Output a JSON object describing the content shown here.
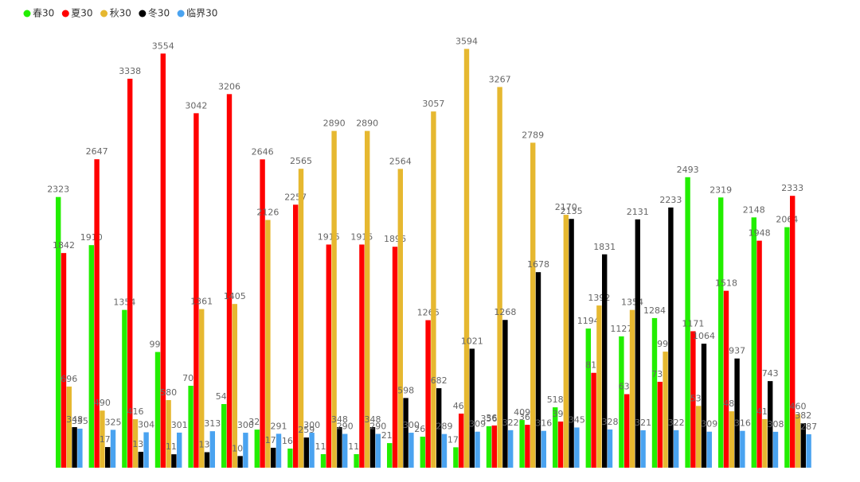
{
  "chart_data": {
    "type": "bar",
    "categories": [
      null,
      null,
      null,
      null,
      null,
      null,
      null,
      null,
      null,
      null,
      null,
      null,
      null,
      null,
      null,
      null,
      null,
      null,
      null,
      null,
      null,
      null,
      null
    ],
    "series": [
      {
        "name": "春30",
        "color": "#22ee00",
        "values": [
          2323,
          1910,
          1354,
          993,
          703,
          546,
          327,
          164,
          116,
          116,
          211,
          266,
          175,
          356,
          409,
          518,
          1194,
          1127,
          1284,
          2493,
          2319,
          2148,
          2064
        ]
      },
      {
        "name": "夏30",
        "color": "#ff0000",
        "values": [
          1842,
          2647,
          3338,
          3554,
          3042,
          3206,
          2646,
          2257,
          1915,
          1915,
          1896,
          1266,
          464,
          362,
          368,
          396,
          814,
          631,
          737,
          1171,
          1518,
          1948,
          2333
        ]
      },
      {
        "name": "秋30",
        "color": "#e6b830",
        "values": [
          696,
          490,
          416,
          580,
          1361,
          1405,
          2126,
          2565,
          2890,
          2890,
          2564,
          3057,
          3594,
          3267,
          2789,
          2170,
          1392,
          1354,
          996,
          530,
          484,
          417,
          460
        ]
      },
      {
        "name": "冬30",
        "color": "#000000",
        "values": [
          348,
          177,
          136,
          115,
          133,
          100,
          171,
          259,
          348,
          348,
          598,
          682,
          1021,
          1268,
          1678,
          2135,
          1831,
          2131,
          2233,
          1064,
          937,
          743,
          382
        ]
      },
      {
        "name": "临界30",
        "color": "#4aa3f0",
        "values": [
          335,
          325,
          304,
          301,
          313,
          300,
          291,
          300,
          290,
          290,
          300,
          289,
          309,
          322,
          316,
          345,
          328,
          321,
          322,
          309,
          316,
          308,
          287
        ]
      }
    ],
    "ylim": [
      0,
      4000
    ]
  }
}
